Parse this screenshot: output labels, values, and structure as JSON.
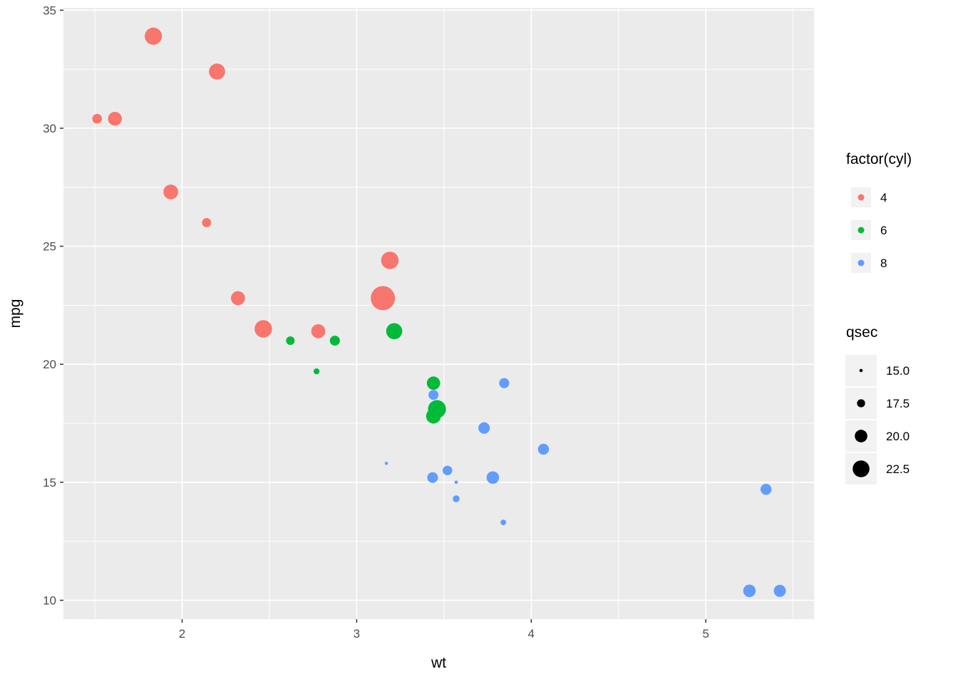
{
  "chart_data": {
    "type": "scatter",
    "title": "",
    "xlabel": "wt",
    "ylabel": "mpg",
    "xlim": [
      1.32,
      5.62
    ],
    "ylim": [
      9.2,
      35.1
    ],
    "x_ticks": [
      2,
      3,
      4,
      5
    ],
    "y_ticks": [
      10,
      15,
      20,
      25,
      30,
      35
    ],
    "grid": true,
    "legend_position": "right",
    "color_by": "cyl",
    "size_by": "qsec",
    "size_domain": [
      14.5,
      22.9
    ],
    "legends": {
      "color": {
        "title": "factor(cyl)",
        "entries": [
          {
            "label": "4",
            "color": "#F8766D"
          },
          {
            "label": "6",
            "color": "#00BA38"
          },
          {
            "label": "8",
            "color": "#619CFF"
          }
        ]
      },
      "size": {
        "title": "qsec",
        "labels": [
          "15.0",
          "17.5",
          "20.0",
          "22.5"
        ],
        "values": [
          15.0,
          17.5,
          20.0,
          22.5
        ]
      }
    },
    "points": [
      {
        "wt": 2.62,
        "mpg": 21.0,
        "cyl": 6,
        "qsec": 16.46
      },
      {
        "wt": 2.875,
        "mpg": 21.0,
        "cyl": 6,
        "qsec": 17.02
      },
      {
        "wt": 2.32,
        "mpg": 22.8,
        "cyl": 4,
        "qsec": 18.61
      },
      {
        "wt": 3.215,
        "mpg": 21.4,
        "cyl": 6,
        "qsec": 19.44
      },
      {
        "wt": 3.44,
        "mpg": 18.7,
        "cyl": 8,
        "qsec": 17.02
      },
      {
        "wt": 3.46,
        "mpg": 18.1,
        "cyl": 6,
        "qsec": 20.22
      },
      {
        "wt": 3.57,
        "mpg": 14.3,
        "cyl": 8,
        "qsec": 15.84
      },
      {
        "wt": 3.19,
        "mpg": 24.4,
        "cyl": 4,
        "qsec": 20.0
      },
      {
        "wt": 3.15,
        "mpg": 22.8,
        "cyl": 4,
        "qsec": 22.9
      },
      {
        "wt": 3.44,
        "mpg": 19.2,
        "cyl": 6,
        "qsec": 18.3
      },
      {
        "wt": 3.44,
        "mpg": 17.8,
        "cyl": 6,
        "qsec": 18.9
      },
      {
        "wt": 4.07,
        "mpg": 16.4,
        "cyl": 8,
        "qsec": 17.4
      },
      {
        "wt": 3.73,
        "mpg": 17.3,
        "cyl": 8,
        "qsec": 17.6
      },
      {
        "wt": 3.78,
        "mpg": 15.2,
        "cyl": 8,
        "qsec": 18.0
      },
      {
        "wt": 5.25,
        "mpg": 10.4,
        "cyl": 8,
        "qsec": 17.98
      },
      {
        "wt": 5.424,
        "mpg": 10.4,
        "cyl": 8,
        "qsec": 17.82
      },
      {
        "wt": 5.345,
        "mpg": 14.7,
        "cyl": 8,
        "qsec": 17.42
      },
      {
        "wt": 2.2,
        "mpg": 32.4,
        "cyl": 4,
        "qsec": 19.47
      },
      {
        "wt": 1.615,
        "mpg": 30.4,
        "cyl": 4,
        "qsec": 18.52
      },
      {
        "wt": 1.835,
        "mpg": 33.9,
        "cyl": 4,
        "qsec": 19.9
      },
      {
        "wt": 2.465,
        "mpg": 21.5,
        "cyl": 4,
        "qsec": 20.01
      },
      {
        "wt": 3.52,
        "mpg": 15.5,
        "cyl": 8,
        "qsec": 16.87
      },
      {
        "wt": 3.435,
        "mpg": 15.2,
        "cyl": 8,
        "qsec": 17.3
      },
      {
        "wt": 3.84,
        "mpg": 13.3,
        "cyl": 8,
        "qsec": 15.41
      },
      {
        "wt": 3.845,
        "mpg": 19.2,
        "cyl": 8,
        "qsec": 17.05
      },
      {
        "wt": 1.935,
        "mpg": 27.3,
        "cyl": 4,
        "qsec": 18.9
      },
      {
        "wt": 2.14,
        "mpg": 26.0,
        "cyl": 4,
        "qsec": 16.7
      },
      {
        "wt": 1.513,
        "mpg": 30.4,
        "cyl": 4,
        "qsec": 16.9
      },
      {
        "wt": 3.17,
        "mpg": 15.8,
        "cyl": 8,
        "qsec": 14.5
      },
      {
        "wt": 2.77,
        "mpg": 19.7,
        "cyl": 6,
        "qsec": 15.5
      },
      {
        "wt": 3.57,
        "mpg": 15.0,
        "cyl": 8,
        "qsec": 14.6
      },
      {
        "wt": 2.78,
        "mpg": 21.4,
        "cyl": 4,
        "qsec": 18.6
      }
    ]
  },
  "style": {
    "background": "#FFFFFF",
    "panel_bg": "#EBEBEB",
    "grid_color": "#FFFFFF",
    "axis_text_color": "#4D4D4D",
    "axis_title_color": "#000000",
    "tick_mark_color": "#333333",
    "legend_key_bg": "#F2F2F2",
    "legend_text_color": "#000000",
    "size_point_color": "#000000"
  }
}
